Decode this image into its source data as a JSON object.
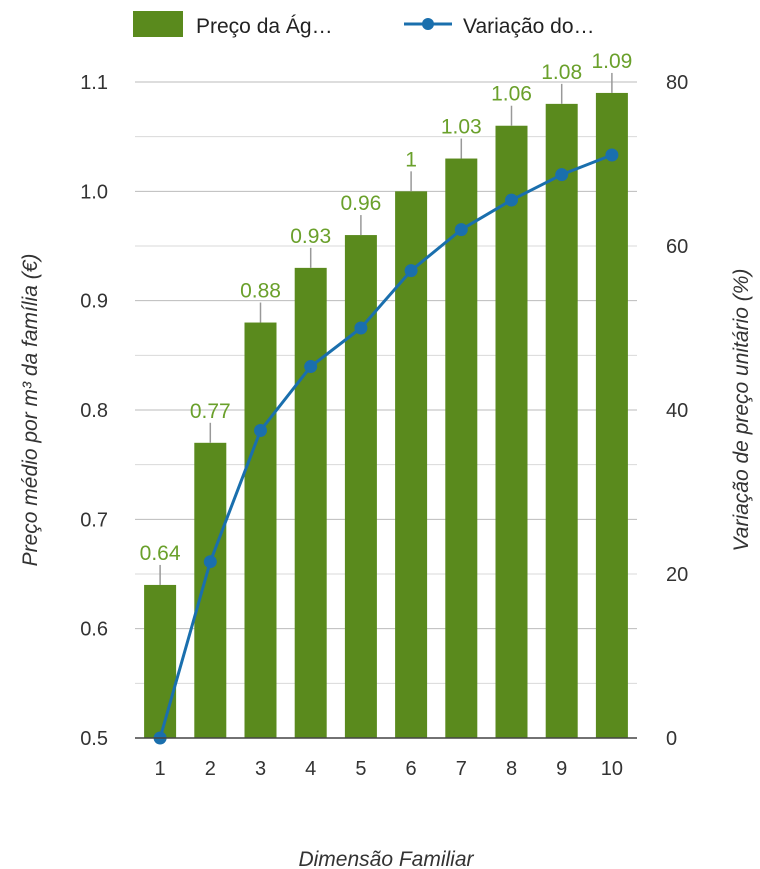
{
  "chart_data": {
    "type": "bar",
    "categories": [
      "1",
      "2",
      "3",
      "4",
      "5",
      "6",
      "7",
      "8",
      "9",
      "10"
    ],
    "series": [
      {
        "name": "Preço da Ág…",
        "type": "bar",
        "axis": "left",
        "color": "#5a8a1d",
        "values": [
          0.64,
          0.77,
          0.88,
          0.93,
          0.96,
          1.0,
          1.03,
          1.06,
          1.08,
          1.09
        ],
        "data_labels": [
          "0.64",
          "0.77",
          "0.88",
          "0.93",
          "0.96",
          "1",
          "1.03",
          "1.06",
          "1.08",
          "1.09"
        ]
      },
      {
        "name": "Variação do…",
        "type": "line",
        "axis": "right",
        "color": "#1a6fad",
        "values": [
          0,
          21.5,
          37.5,
          45.3,
          50.0,
          57.0,
          62.0,
          65.6,
          68.7,
          71.1
        ]
      }
    ],
    "xlabel": "Dimensão Familiar",
    "ylabel": "Preço médio por m³ da família (€)",
    "y2label": "Variação de preço unitário (%)",
    "ylim": [
      0.5,
      1.1
    ],
    "y2lim": [
      0,
      80
    ],
    "yticks": [
      "0.5",
      "0.6",
      "0.7",
      "0.8",
      "0.9",
      "1.0",
      "1.1"
    ],
    "y2ticks": [
      "0",
      "20",
      "40",
      "60",
      "80"
    ],
    "grid": true,
    "legend_position": "top"
  }
}
